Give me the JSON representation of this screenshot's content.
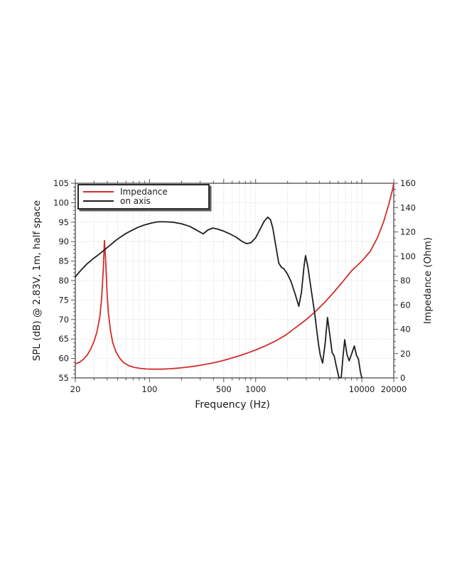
{
  "figure": {
    "background": "#ffffff",
    "colors": {
      "impedance_line": "#d42c2c",
      "on_axis_line": "#1f1f1f",
      "grid": "#c9c9c9",
      "frame": "#4a4a4a",
      "tick": "#555555",
      "text": "#1a1a1a"
    }
  },
  "chart_data": {
    "type": "line",
    "xlabel": "Frequency (Hz)",
    "ylabel_left": "SPL (dB) @ 2.83V, 1m, half space",
    "ylabel_right": "Impedance (Ohm)",
    "x_scale": "log",
    "x_range": [
      20,
      20000
    ],
    "y_left_range": [
      55,
      105
    ],
    "y_right_range": [
      0,
      160
    ],
    "grid": true,
    "legend_position": "top-left",
    "x_ticks_labeled": [
      20,
      100,
      500,
      1000,
      10000,
      20000
    ],
    "x_ticks_minor": [
      20,
      30,
      40,
      50,
      60,
      70,
      80,
      90,
      100,
      200,
      300,
      400,
      500,
      600,
      700,
      800,
      900,
      1000,
      2000,
      3000,
      4000,
      5000,
      6000,
      7000,
      8000,
      9000,
      10000,
      20000
    ],
    "y_left_ticks": [
      55,
      60,
      65,
      70,
      75,
      80,
      85,
      90,
      95,
      100,
      105
    ],
    "y_left_minor_step": 1,
    "y_right_ticks": [
      0,
      20,
      40,
      60,
      80,
      100,
      120,
      140,
      160
    ],
    "y_right_minor_step": 5,
    "series": [
      {
        "name": "Impedance",
        "color": "#d42c2c",
        "axis": "right",
        "points": [
          [
            20,
            11.5
          ],
          [
            22,
            13
          ],
          [
            24,
            15.5
          ],
          [
            26,
            19
          ],
          [
            28,
            24
          ],
          [
            30,
            30
          ],
          [
            32,
            38
          ],
          [
            34,
            50
          ],
          [
            35.5,
            67
          ],
          [
            36.8,
            92
          ],
          [
            37.6,
            113
          ],
          [
            38.6,
            97
          ],
          [
            39.8,
            70
          ],
          [
            41,
            53
          ],
          [
            43,
            38
          ],
          [
            45,
            29
          ],
          [
            48,
            22
          ],
          [
            52,
            16.5
          ],
          [
            57,
            12.5
          ],
          [
            64,
            10
          ],
          [
            72,
            8.6
          ],
          [
            82,
            7.8
          ],
          [
            95,
            7.3
          ],
          [
            110,
            7.2
          ],
          [
            130,
            7.2
          ],
          [
            155,
            7.5
          ],
          [
            185,
            8.0
          ],
          [
            220,
            8.7
          ],
          [
            265,
            9.6
          ],
          [
            320,
            10.8
          ],
          [
            390,
            12.2
          ],
          [
            470,
            13.8
          ],
          [
            560,
            15.6
          ],
          [
            680,
            17.8
          ],
          [
            820,
            20.2
          ],
          [
            1000,
            23
          ],
          [
            1250,
            26.5
          ],
          [
            1550,
            30.5
          ],
          [
            1900,
            35
          ],
          [
            2350,
            41
          ],
          [
            2900,
            47
          ],
          [
            3600,
            54
          ],
          [
            4400,
            61.5
          ],
          [
            5400,
            70
          ],
          [
            6600,
            79
          ],
          [
            8000,
            88
          ],
          [
            10000,
            96
          ],
          [
            12000,
            104
          ],
          [
            14000,
            115
          ],
          [
            16000,
            128
          ],
          [
            18000,
            143
          ],
          [
            19500,
            155
          ],
          [
            20000,
            160
          ]
        ]
      },
      {
        "name": "on axis",
        "color": "#1f1f1f",
        "axis": "left",
        "points": [
          [
            20,
            81.0
          ],
          [
            23,
            82.9
          ],
          [
            26,
            84.4
          ],
          [
            30,
            85.8
          ],
          [
            34,
            86.9
          ],
          [
            38,
            88.0
          ],
          [
            43,
            89.2
          ],
          [
            48,
            90.3
          ],
          [
            54,
            91.3
          ],
          [
            60,
            92.1
          ],
          [
            68,
            92.9
          ],
          [
            78,
            93.7
          ],
          [
            90,
            94.3
          ],
          [
            105,
            94.8
          ],
          [
            120,
            95.1
          ],
          [
            140,
            95.1
          ],
          [
            165,
            95.0
          ],
          [
            200,
            94.6
          ],
          [
            240,
            93.9
          ],
          [
            280,
            92.9
          ],
          [
            320,
            92.0
          ],
          [
            355,
            93.0
          ],
          [
            395,
            93.5
          ],
          [
            440,
            93.2
          ],
          [
            500,
            92.7
          ],
          [
            570,
            92.0
          ],
          [
            650,
            91.2
          ],
          [
            740,
            90.1
          ],
          [
            820,
            89.5
          ],
          [
            900,
            89.7
          ],
          [
            1000,
            91.0
          ],
          [
            1100,
            93.2
          ],
          [
            1200,
            95.2
          ],
          [
            1300,
            96.3
          ],
          [
            1380,
            95.6
          ],
          [
            1450,
            93.5
          ],
          [
            1550,
            88.8
          ],
          [
            1650,
            84.5
          ],
          [
            1750,
            83.4
          ],
          [
            1850,
            83.0
          ],
          [
            2000,
            81.6
          ],
          [
            2150,
            79.8
          ],
          [
            2350,
            76.6
          ],
          [
            2550,
            73.4
          ],
          [
            2700,
            77.0
          ],
          [
            2850,
            83.5
          ],
          [
            2950,
            86.4
          ],
          [
            3100,
            83.6
          ],
          [
            3300,
            78.5
          ],
          [
            3600,
            71.5
          ],
          [
            3900,
            63.8
          ],
          [
            4050,
            61.0
          ],
          [
            4270,
            58.8
          ],
          [
            4500,
            63.5
          ],
          [
            4750,
            70.5
          ],
          [
            5000,
            66.0
          ],
          [
            5250,
            61.5
          ],
          [
            5500,
            60.6
          ],
          [
            5750,
            58.0
          ],
          [
            6100,
            55.0
          ],
          [
            6400,
            55.1
          ],
          [
            6650,
            60.5
          ],
          [
            6900,
            64.8
          ],
          [
            7250,
            61.0
          ],
          [
            7600,
            59.4
          ],
          [
            8100,
            61.5
          ],
          [
            8500,
            63.2
          ],
          [
            8900,
            60.8
          ],
          [
            9300,
            59.8
          ],
          [
            9700,
            56.5
          ],
          [
            10000,
            55.0
          ]
        ]
      }
    ]
  }
}
